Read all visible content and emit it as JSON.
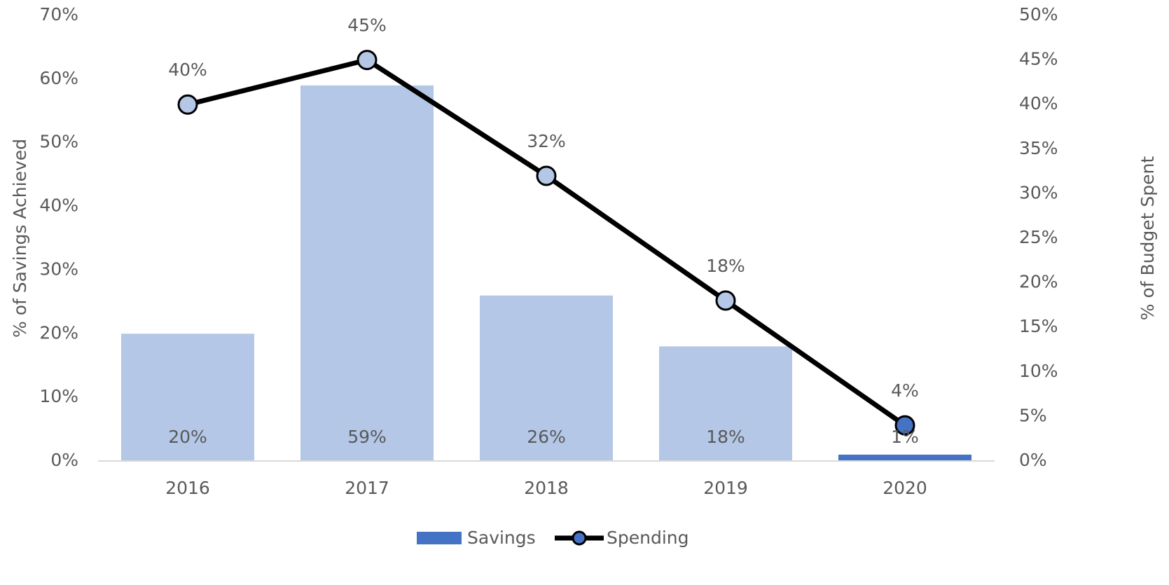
{
  "chart_data": {
    "type": "bar_line",
    "categories": [
      "2016",
      "2017",
      "2018",
      "2019",
      "2020"
    ],
    "series": [
      {
        "name": "Savings",
        "type": "bar",
        "color": "#4472c4",
        "point_colors": [
          "#b4c7e7",
          "#b4c7e7",
          "#b4c7e7",
          "#b4c7e7",
          "#4472c4"
        ],
        "values": [
          20,
          59,
          26,
          18,
          1
        ],
        "value_labels": [
          "20%",
          "59%",
          "26%",
          "18%",
          "1%"
        ]
      },
      {
        "name": "Spending",
        "type": "line",
        "axis": "y2",
        "color": "#000000",
        "marker_color": "#4472c4",
        "point_colors": [
          "#b4c7e7",
          "#b4c7e7",
          "#b4c7e7",
          "#b4c7e7",
          "#4472c4"
        ],
        "values": [
          40,
          45,
          32,
          18,
          4
        ],
        "value_labels": [
          "40%",
          "45%",
          "32%",
          "18%",
          "4%"
        ]
      }
    ],
    "ylabel": "% of Savings Achieved",
    "y2label": "% of Budget Spent",
    "ylim": [
      0,
      70
    ],
    "yticks": [
      {
        "value": 0,
        "label": "0%"
      },
      {
        "value": 10,
        "label": "10%"
      },
      {
        "value": 20,
        "label": "20%"
      },
      {
        "value": 30,
        "label": "30%"
      },
      {
        "value": 40,
        "label": "40%"
      },
      {
        "value": 50,
        "label": "50%"
      },
      {
        "value": 60,
        "label": "60%"
      },
      {
        "value": 70,
        "label": "70%"
      }
    ],
    "y2lim": [
      0,
      50
    ],
    "y2ticks": [
      {
        "value": 0,
        "label": "0%"
      },
      {
        "value": 5,
        "label": "5%"
      },
      {
        "value": 10,
        "label": "10%"
      },
      {
        "value": 15,
        "label": "15%"
      },
      {
        "value": 20,
        "label": "20%"
      },
      {
        "value": 25,
        "label": "25%"
      },
      {
        "value": 30,
        "label": "30%"
      },
      {
        "value": 35,
        "label": "35%"
      },
      {
        "value": 40,
        "label": "40%"
      },
      {
        "value": 45,
        "label": "45%"
      },
      {
        "value": 50,
        "label": "50%"
      }
    ],
    "grid": false,
    "legend": "bottom"
  }
}
